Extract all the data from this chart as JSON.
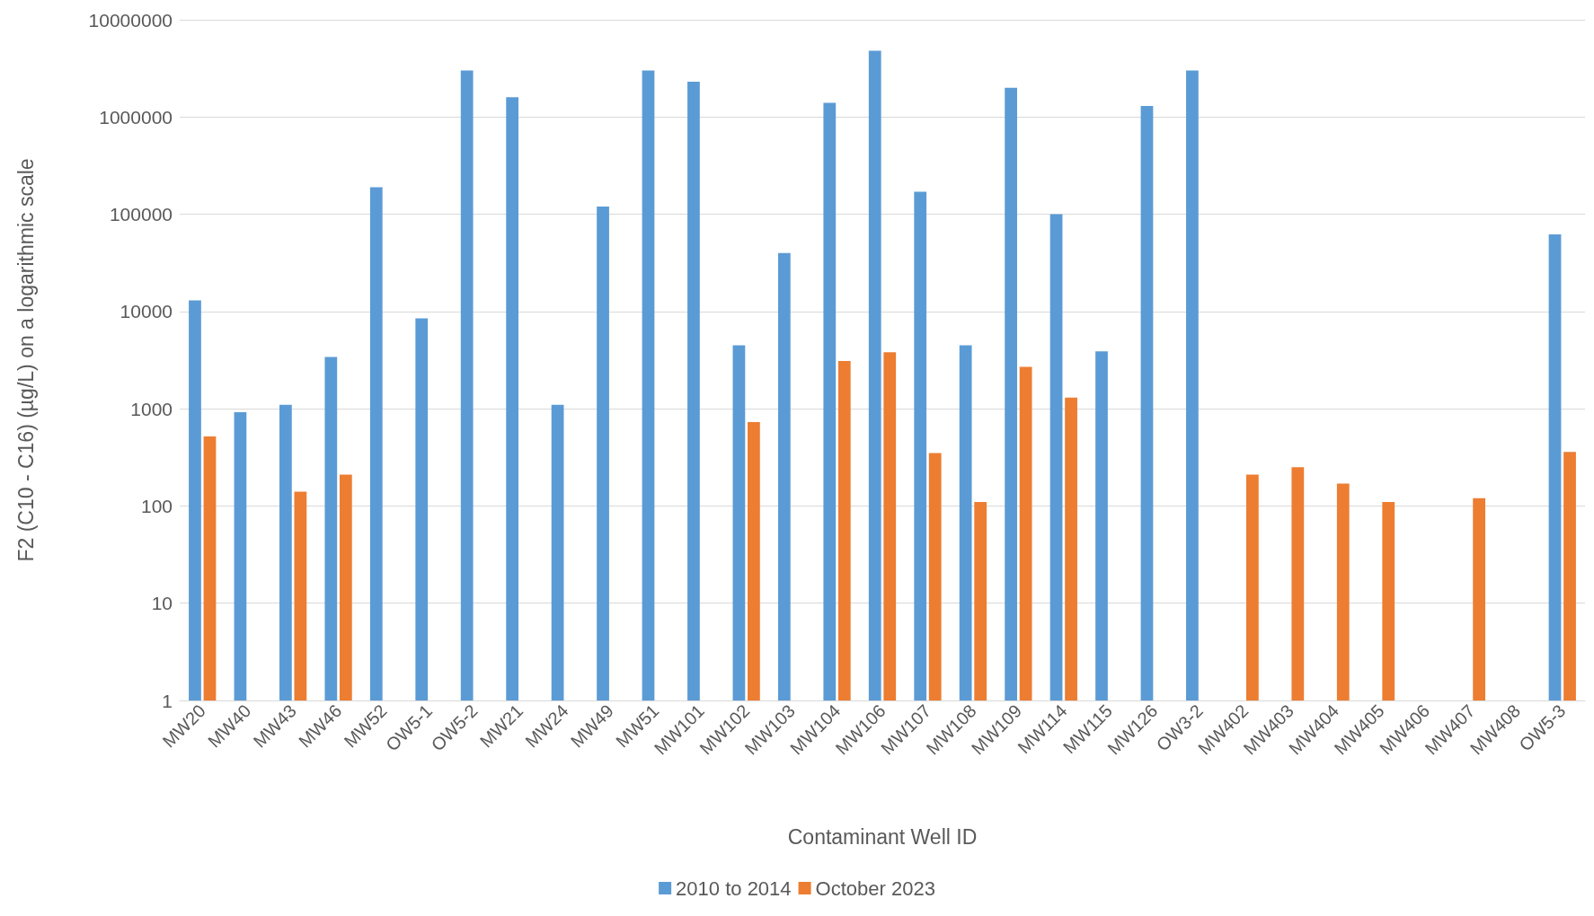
{
  "chart_data": {
    "type": "bar",
    "xlabel": "Contaminant Well ID",
    "ylabel": "F2 (C10 - C16) (µg/L) on a logarithmic scale",
    "categories": [
      "MW20",
      "MW40",
      "MW43",
      "MW46",
      "MW52",
      "OW5-1",
      "OW5-2",
      "MW21",
      "MW24",
      "MW49",
      "MW51",
      "MW101",
      "MW102",
      "MW103",
      "MW104",
      "MW106",
      "MW107",
      "MW108",
      "MW109",
      "MW114",
      "MW115",
      "MW126",
      "OW3-2",
      "MW402",
      "MW403",
      "MW404",
      "MW405",
      "MW406",
      "MW407",
      "MW408",
      "OW5-3"
    ],
    "series": [
      {
        "name": "2010 to 2014",
        "color": "#5b9bd5",
        "values": [
          13000,
          920,
          1100,
          3400,
          190000,
          8500,
          3000000,
          1600000,
          1100,
          120000,
          3000000,
          2300000,
          4500,
          40000,
          1400000,
          4800000,
          170000,
          4500,
          2000000,
          100000,
          3900,
          1300000,
          3000000,
          null,
          null,
          null,
          null,
          null,
          null,
          null,
          62000
        ]
      },
      {
        "name": "October 2023",
        "color": "#ed7d31",
        "values": [
          520,
          null,
          140,
          210,
          null,
          null,
          null,
          null,
          null,
          null,
          null,
          null,
          730,
          null,
          3100,
          3800,
          350,
          110,
          2700,
          1300,
          null,
          null,
          null,
          210,
          250,
          170,
          110,
          null,
          120,
          null,
          360
        ]
      }
    ],
    "log": "y",
    "ylim": [
      1,
      10000000
    ],
    "yticks": [
      1,
      10,
      100,
      1000,
      10000,
      100000,
      1000000,
      10000000
    ],
    "grid": "y",
    "legend": "bottom"
  }
}
